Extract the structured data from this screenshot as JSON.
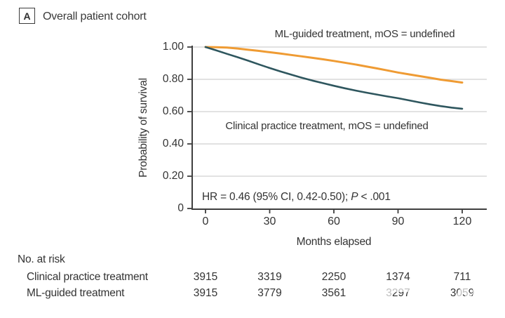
{
  "header": {
    "panel_label": "A",
    "title": "Overall patient cohort"
  },
  "chart_data": {
    "type": "line",
    "title": "Overall patient cohort",
    "xlabel": "Months elapsed",
    "ylabel": "Probability of survival",
    "xlim": [
      0,
      120
    ],
    "ylim": [
      0,
      1.0
    ],
    "grid": "horizontal-gridlines",
    "legend_position": "labels-on-chart",
    "x_ticks": [
      0,
      30,
      60,
      90,
      120
    ],
    "y_ticks": [
      {
        "label": "1.00",
        "value": 1.0
      },
      {
        "label": "0.80",
        "value": 0.8
      },
      {
        "label": "0.60",
        "value": 0.6
      },
      {
        "label": "0.40",
        "value": 0.4
      },
      {
        "label": "0.20",
        "value": 0.2
      },
      {
        "label": "0",
        "value": 0.0
      }
    ],
    "x": [
      0,
      5,
      10,
      15,
      20,
      25,
      30,
      35,
      40,
      45,
      50,
      55,
      60,
      65,
      70,
      75,
      80,
      85,
      90,
      95,
      100,
      105,
      110,
      115,
      120
    ],
    "series": [
      {
        "name": "ML-guided treatment",
        "label": "ML-guided treatment, mOS = undefined",
        "color": "#EF9B33",
        "values": [
          1.0,
          0.999,
          0.997,
          0.991,
          0.983,
          0.976,
          0.968,
          0.96,
          0.951,
          0.942,
          0.933,
          0.924,
          0.914,
          0.903,
          0.892,
          0.88,
          0.868,
          0.855,
          0.842,
          0.831,
          0.82,
          0.809,
          0.798,
          0.789,
          0.78
        ]
      },
      {
        "name": "Clinical practice treatment",
        "label": "Clinical practice treatment, mOS = undefined",
        "color": "#2E565E",
        "values": [
          1.0,
          0.979,
          0.958,
          0.937,
          0.915,
          0.892,
          0.87,
          0.849,
          0.829,
          0.81,
          0.792,
          0.776,
          0.76,
          0.745,
          0.731,
          0.718,
          0.706,
          0.694,
          0.683,
          0.67,
          0.657,
          0.645,
          0.634,
          0.625,
          0.618
        ]
      }
    ],
    "annotation": {
      "hr_prefix": "HR = 0.46 (95% CI, 0.42-0.50); ",
      "p_label": "P",
      "p_suffix": " < .001"
    }
  },
  "risk_table": {
    "title": "No. at risk",
    "columns": [
      0,
      30,
      60,
      90,
      120
    ],
    "rows": [
      {
        "label": "Clinical practice treatment",
        "values": [
          "3915",
          "3319",
          "2250",
          "1374",
          "711"
        ]
      },
      {
        "label": "ML-guided treatment",
        "values": [
          "3915",
          "3779",
          "3561",
          "3297",
          "3059"
        ]
      }
    ]
  },
  "watermark": {
    "icon": "news-logo-watermark",
    "color": "#FFFFFF"
  },
  "colors": {
    "ml_guided": "#EF9B33",
    "clinical_practice": "#2E565E",
    "gridline": "#D9D9D9",
    "axis": "#3F3F3F",
    "text": "#2E2E2E",
    "background": "#FFFFFF"
  }
}
